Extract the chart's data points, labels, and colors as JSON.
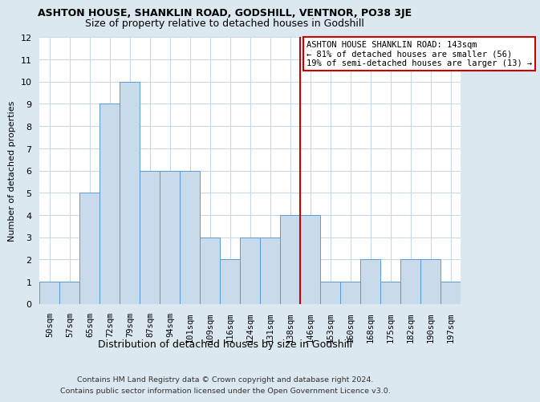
{
  "title": "ASHTON HOUSE, SHANKLIN ROAD, GODSHILL, VENTNOR, PO38 3JE",
  "subtitle": "Size of property relative to detached houses in Godshill",
  "xlabel": "Distribution of detached houses by size in Godshill",
  "ylabel": "Number of detached properties",
  "categories": [
    "50sqm",
    "57sqm",
    "65sqm",
    "72sqm",
    "79sqm",
    "87sqm",
    "94sqm",
    "101sqm",
    "109sqm",
    "116sqm",
    "124sqm",
    "131sqm",
    "138sqm",
    "146sqm",
    "153sqm",
    "160sqm",
    "168sqm",
    "175sqm",
    "182sqm",
    "190sqm",
    "197sqm"
  ],
  "values": [
    1,
    1,
    5,
    9,
    10,
    6,
    6,
    6,
    3,
    2,
    3,
    3,
    4,
    4,
    1,
    1,
    2,
    1,
    2,
    2,
    1
  ],
  "bar_color": "#c9daea",
  "bar_edge_color": "#5b9bd5",
  "annotation_title": "ASHTON HOUSE SHANKLIN ROAD: 143sqm",
  "annotation_line1": "← 81% of detached houses are smaller (56)",
  "annotation_line2": "19% of semi-detached houses are larger (13) →",
  "annotation_box_color": "#ffffff",
  "annotation_box_edge": "#cc0000",
  "red_line_color": "#cc0000",
  "ylim": [
    0,
    12
  ],
  "yticks": [
    0,
    1,
    2,
    3,
    4,
    5,
    6,
    7,
    8,
    9,
    10,
    11,
    12
  ],
  "grid_color": "#c8d8e8",
  "footer": "Contains HM Land Registry data © Crown copyright and database right 2024.\nContains public sector information licensed under the Open Government Licence v3.0.",
  "background_color": "#dce8f0",
  "title_fontsize": 9,
  "subtitle_fontsize": 9,
  "ylabel_fontsize": 8,
  "xlabel_fontsize": 9
}
